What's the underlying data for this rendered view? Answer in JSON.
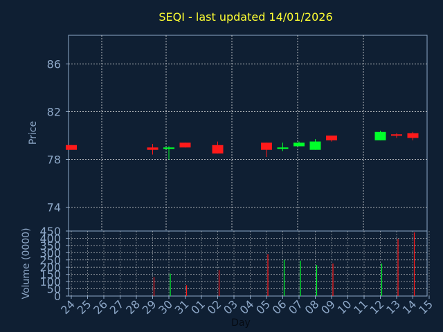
{
  "title": "SEQI - last updated 14/01/2026",
  "colors": {
    "background": "#0f1f33",
    "axis": "#8ea8c8",
    "grid": "#e0e0e0",
    "title": "#ffff33",
    "up": "#00ff2a",
    "down": "#ff1a1a",
    "xlabel": "#050a12"
  },
  "chart_data": [
    {
      "type": "candlestick",
      "title": "SEQI - last updated 14/01/2026",
      "ylabel": "Price",
      "ylim": [
        72,
        88.4
      ],
      "yticks": [
        74,
        78,
        82,
        86
      ],
      "grid": true,
      "categories": [
        "24",
        "25",
        "26",
        "27",
        "28",
        "29",
        "30",
        "31",
        "01",
        "02",
        "03",
        "04",
        "05",
        "06",
        "07",
        "08",
        "09",
        "10",
        "11",
        "12",
        "13",
        "14",
        "15"
      ],
      "candles": [
        {
          "x": "24",
          "open": 79.2,
          "close": 78.8,
          "high": 79.2,
          "low": 78.8,
          "direction": "down"
        },
        {
          "x": "29",
          "open": 79.0,
          "close": 78.8,
          "high": 79.3,
          "low": 78.4,
          "direction": "down"
        },
        {
          "x": "30",
          "open": 78.9,
          "close": 79.0,
          "high": 79.1,
          "low": 78.0,
          "direction": "up"
        },
        {
          "x": "31",
          "open": 79.4,
          "close": 79.0,
          "high": 79.4,
          "low": 79.0,
          "direction": "down"
        },
        {
          "x": "02",
          "open": 79.2,
          "close": 78.5,
          "high": 79.5,
          "low": 78.5,
          "direction": "down"
        },
        {
          "x": "05",
          "open": 79.4,
          "close": 78.8,
          "high": 79.4,
          "low": 78.2,
          "direction": "down"
        },
        {
          "x": "06",
          "open": 79.0,
          "close": 79.0,
          "high": 79.4,
          "low": 78.7,
          "direction": "up"
        },
        {
          "x": "07",
          "open": 79.1,
          "close": 79.4,
          "high": 79.5,
          "low": 79.1,
          "direction": "up"
        },
        {
          "x": "08",
          "open": 78.8,
          "close": 79.5,
          "high": 79.7,
          "low": 78.8,
          "direction": "up"
        },
        {
          "x": "09",
          "open": 80.0,
          "close": 79.6,
          "high": 80.0,
          "low": 79.5,
          "direction": "down"
        },
        {
          "x": "12",
          "open": 79.6,
          "close": 80.3,
          "high": 80.4,
          "low": 79.6,
          "direction": "up"
        },
        {
          "x": "13",
          "open": 80.1,
          "close": 80.0,
          "high": 80.2,
          "low": 79.8,
          "direction": "down"
        },
        {
          "x": "14",
          "open": 80.2,
          "close": 79.8,
          "high": 80.3,
          "low": 79.6,
          "direction": "down"
        }
      ]
    },
    {
      "type": "bar",
      "ylabel": "Volume (0000)",
      "xlabel": "Day",
      "ylim": [
        0,
        450
      ],
      "yticks": [
        0,
        50,
        100,
        150,
        200,
        250,
        300,
        350,
        400,
        450
      ],
      "grid": true,
      "categories": [
        "24",
        "25",
        "26",
        "27",
        "28",
        "29",
        "30",
        "31",
        "01",
        "02",
        "03",
        "04",
        "05",
        "06",
        "07",
        "08",
        "09",
        "10",
        "11",
        "12",
        "13",
        "14",
        "15"
      ],
      "bars": [
        {
          "x": "29",
          "value": 130,
          "direction": "down"
        },
        {
          "x": "30",
          "value": 155,
          "direction": "up"
        },
        {
          "x": "31",
          "value": 75,
          "direction": "down"
        },
        {
          "x": "02",
          "value": 180,
          "direction": "down"
        },
        {
          "x": "05",
          "value": 290,
          "direction": "down"
        },
        {
          "x": "06",
          "value": 250,
          "direction": "up"
        },
        {
          "x": "07",
          "value": 245,
          "direction": "up"
        },
        {
          "x": "08",
          "value": 215,
          "direction": "up"
        },
        {
          "x": "09",
          "value": 225,
          "direction": "down"
        },
        {
          "x": "12",
          "value": 225,
          "direction": "up"
        },
        {
          "x": "13",
          "value": 395,
          "direction": "down"
        },
        {
          "x": "14",
          "value": 440,
          "direction": "down"
        }
      ]
    }
  ]
}
